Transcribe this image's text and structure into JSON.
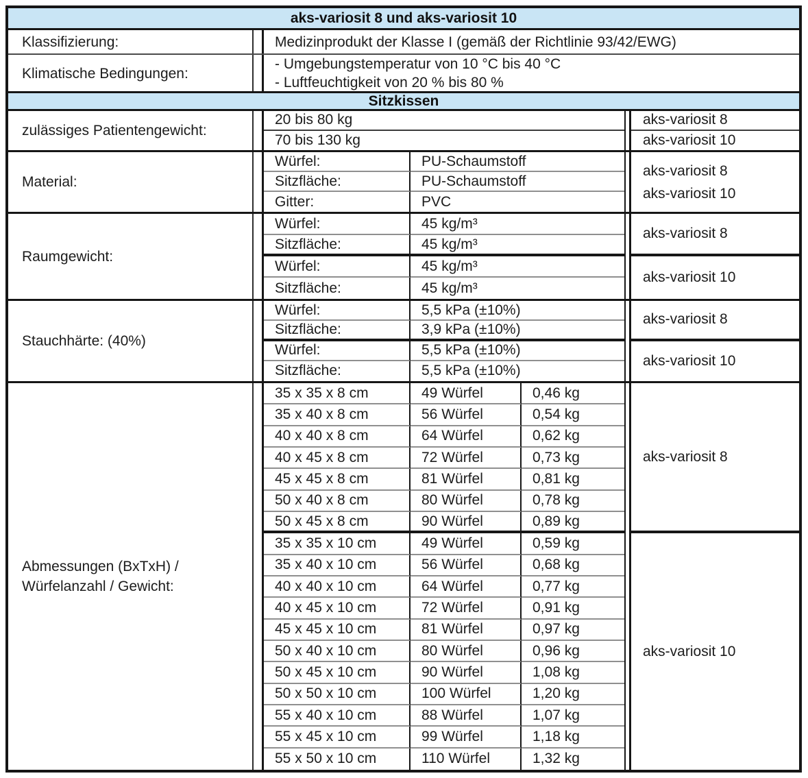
{
  "colors": {
    "banner_bg": "#c9e5f5",
    "border_dark": "#161616",
    "separator_gray": "#8f8f8f",
    "text": "#1c1c1c"
  },
  "title_banner": "aks-variosit 8 und aks-variosit 10",
  "sitzkissen_banner": "Sitzkissen",
  "klassifizierung": {
    "label": "Klassifizierung:",
    "value": "Medizinprodukt der Klasse I (gemäß der Richtlinie 93/42/EWG)"
  },
  "klimatische_bedingungen": {
    "label": "Klimatische Bedingungen:",
    "lines": [
      "- Umgebungstemperatur von 10 °C bis 40 °C",
      "- Luftfeuchtigkeit von 20 % bis 80 %"
    ]
  },
  "patientengewicht": {
    "label": "zulässiges Patientengewicht:",
    "rows": [
      {
        "value": "20 bis 80 kg",
        "product": "aks-variosit 8"
      },
      {
        "value": "70 bis 130 kg",
        "product": "aks-variosit 10"
      }
    ]
  },
  "material": {
    "label": "Material:",
    "rows": [
      {
        "part": "Würfel:",
        "value": "PU-Schaumstoff"
      },
      {
        "part": "Sitzfläche:",
        "value": "PU-Schaumstoff"
      },
      {
        "part": "Gitter:",
        "value": "PVC"
      }
    ],
    "products": [
      "aks-variosit 8",
      "aks-variosit 10"
    ]
  },
  "raumgewicht": {
    "label": "Raumgewicht:",
    "blocks": [
      {
        "product": "aks-variosit 8",
        "rows": [
          {
            "part": "Würfel:",
            "value": "45 kg/m³"
          },
          {
            "part": "Sitzfläche:",
            "value": "45 kg/m³"
          }
        ]
      },
      {
        "product": "aks-variosit 10",
        "rows": [
          {
            "part": "Würfel:",
            "value": "45 kg/m³"
          },
          {
            "part": "Sitzfläche:",
            "value": "45 kg/m³"
          }
        ]
      }
    ]
  },
  "stauchhaerte": {
    "label": "Stauchhärte: (40%)",
    "blocks": [
      {
        "product": "aks-variosit 8",
        "rows": [
          {
            "part": "Würfel:",
            "value": "5,5 kPa (±10%)"
          },
          {
            "part": "Sitzfläche:",
            "value": "3,9 kPa (±10%)"
          }
        ]
      },
      {
        "product": "aks-variosit 10",
        "rows": [
          {
            "part": "Würfel:",
            "value": "5,5 kPa (±10%)"
          },
          {
            "part": "Sitzfläche:",
            "value": "5,5 kPa (±10%)"
          }
        ]
      }
    ]
  },
  "abmessungen": {
    "label_lines": [
      "Abmessungen (BxTxH) /",
      "Würfelanzahl / Gewicht:"
    ],
    "blocks": [
      {
        "product": "aks-variosit 8",
        "rows": [
          [
            "35 x 35 x 8 cm",
            "49 Würfel",
            "0,46 kg"
          ],
          [
            "35 x 40 x 8 cm",
            "56 Würfel",
            "0,54 kg"
          ],
          [
            "40 x 40 x 8 cm",
            "64 Würfel",
            "0,62 kg"
          ],
          [
            "40 x 45 x 8 cm",
            "72 Würfel",
            "0,73 kg"
          ],
          [
            "45 x 45 x 8 cm",
            "81 Würfel",
            "0,81 kg"
          ],
          [
            "50 x 40 x 8 cm",
            "80 Würfel",
            "0,78 kg"
          ],
          [
            "50 x 45 x 8 cm",
            "90 Würfel",
            "0,89 kg"
          ]
        ]
      },
      {
        "product": "aks-variosit 10",
        "rows": [
          [
            "35 x 35 x 10 cm",
            "49 Würfel",
            "0,59 kg"
          ],
          [
            "35 x 40 x 10 cm",
            "56 Würfel",
            "0,68 kg"
          ],
          [
            "40 x 40 x 10 cm",
            "64 Würfel",
            "0,77 kg"
          ],
          [
            "40 x 45 x 10 cm",
            "72 Würfel",
            "0,91 kg"
          ],
          [
            "45 x 45 x 10 cm",
            "81 Würfel",
            "0,97 kg"
          ],
          [
            "50 x 40 x 10 cm",
            "80 Würfel",
            "0,96 kg"
          ],
          [
            "50 x 45 x 10 cm",
            "90 Würfel",
            "1,08 kg"
          ],
          [
            "50 x 50 x 10 cm",
            "100 Würfel",
            "1,20 kg"
          ],
          [
            "55 x 40 x 10 cm",
            "88 Würfel",
            "1,07 kg"
          ],
          [
            "55 x 45 x 10 cm",
            "99 Würfel",
            "1,18 kg"
          ],
          [
            "55 x 50 x 10 cm",
            "110 Würfel",
            "1,32 kg"
          ]
        ]
      }
    ]
  }
}
